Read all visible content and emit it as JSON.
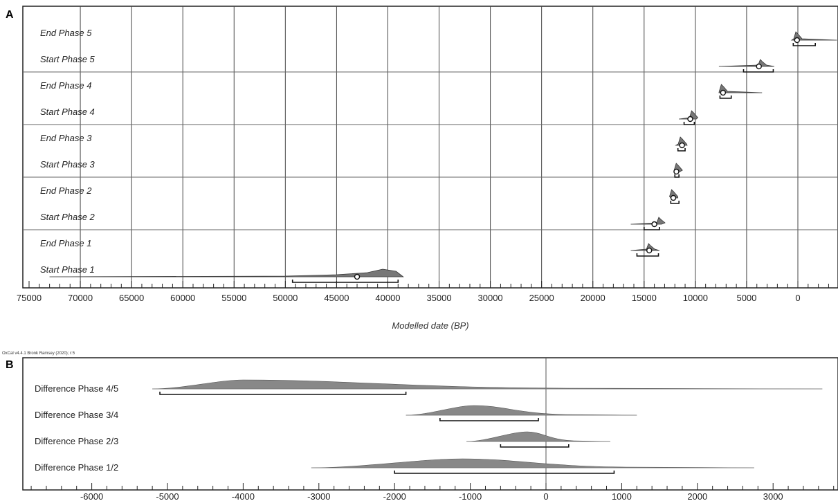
{
  "chart_data": [
    {
      "panel_letter": "A",
      "type": "range",
      "xlabel": "Modelled date (BP)",
      "x_reversed": true,
      "xlim": [
        75000,
        -3800
      ],
      "ticks": [
        75000,
        70000,
        65000,
        60000,
        55000,
        50000,
        45000,
        40000,
        35000,
        30000,
        25000,
        20000,
        15000,
        10000,
        5000,
        0
      ],
      "tick_labels": [
        "75000",
        "70000",
        "65000",
        "60000",
        "55000",
        "50000",
        "45000",
        "40000",
        "35000",
        "30000",
        "25000",
        "20000",
        "15000",
        "10000",
        "5000",
        "0"
      ],
      "series": [
        {
          "name": "End Phase 5",
          "start": 600,
          "end": -3800,
          "peak": 130,
          "mean": 80,
          "range": [
            450,
            -1700
          ],
          "shape": "spike"
        },
        {
          "name": "Start Phase 5",
          "start": 7700,
          "end": 2300,
          "peak": 3600,
          "mean": 3800,
          "range": [
            5300,
            2400
          ],
          "shape": "bump"
        },
        {
          "name": "End Phase 4",
          "start": 7700,
          "end": 3500,
          "peak": 7400,
          "mean": 7300,
          "range": [
            7600,
            6500
          ],
          "shape": "spike"
        },
        {
          "name": "Start Phase 4",
          "start": 11600,
          "end": 9900,
          "peak": 10300,
          "mean": 10500,
          "range": [
            11100,
            10100
          ],
          "shape": "spike"
        },
        {
          "name": "End Phase 3",
          "start": 11900,
          "end": 10800,
          "peak": 11400,
          "mean": 11300,
          "range": [
            11700,
            11000
          ],
          "shape": "spike"
        },
        {
          "name": "Start Phase 3",
          "start": 12100,
          "end": 11500,
          "peak": 11800,
          "mean": 11850,
          "range": [
            12000,
            11600
          ],
          "shape": "spike"
        },
        {
          "name": "End Phase 2",
          "start": 12400,
          "end": 11700,
          "peak": 12250,
          "mean": 12150,
          "range": [
            12400,
            11600
          ],
          "shape": "spike"
        },
        {
          "name": "Start Phase 2",
          "start": 16300,
          "end": 13300,
          "peak": 13500,
          "mean": 14000,
          "range": [
            15000,
            13500
          ],
          "shape": "bump"
        },
        {
          "name": "End Phase 1",
          "start": 16300,
          "end": 13500,
          "peak": 14500,
          "mean": 14500,
          "range": [
            15700,
            13600
          ],
          "shape": "bump"
        },
        {
          "name": "Start Phase 1",
          "start": 73000,
          "end": 38500,
          "peak": 40500,
          "mean": 43000,
          "range": [
            49300,
            39000
          ],
          "shape": "long"
        }
      ]
    },
    {
      "panel_letter": "B",
      "type": "range",
      "credit": "OxCal v4.4.1 Bronk Ramsey (2020); r:5",
      "xlim": [
        -6800,
        3850
      ],
      "ticks": [
        -6000,
        -5000,
        -4000,
        -3000,
        -2000,
        -1000,
        0,
        1000,
        2000,
        3000
      ],
      "tick_labels": [
        "-6000",
        "-5000",
        "-4000",
        "-3000",
        "-2000",
        "-1000",
        "0",
        "1000",
        "2000",
        "3000"
      ],
      "series": [
        {
          "name": "Difference Phase 4/5",
          "start": -5200,
          "end": 3650,
          "peak": -4000,
          "range": [
            -5100,
            -1850
          ]
        },
        {
          "name": "Difference Phase 3/4",
          "start": -1850,
          "end": 1200,
          "peak": -950,
          "range": [
            -1400,
            -100
          ]
        },
        {
          "name": "Difference Phase 2/3",
          "start": -1050,
          "end": 850,
          "peak": -250,
          "range": [
            -600,
            300
          ]
        },
        {
          "name": "Difference Phase 1/2",
          "start": -3100,
          "end": 2750,
          "peak": -1100,
          "range": [
            -2000,
            900
          ]
        }
      ]
    }
  ]
}
